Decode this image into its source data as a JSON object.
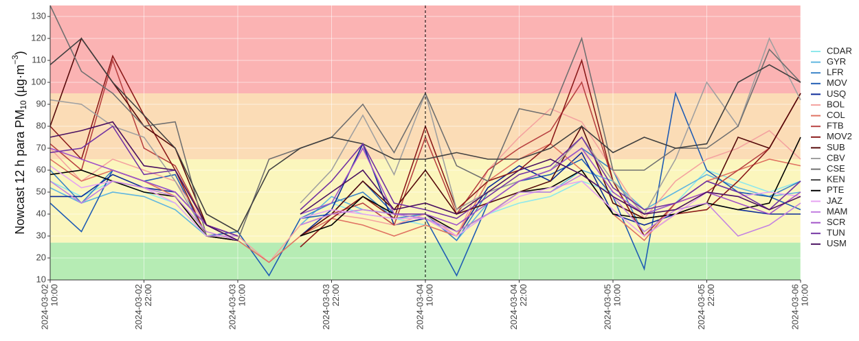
{
  "chart_data": {
    "type": "line",
    "ylabel": {
      "text": "Nowcast 12 h para  PM",
      "sub": "10",
      "unit": " (µg·m",
      "sup": "−3",
      "end": ")"
    },
    "x": [
      "2024-03-02 10:00",
      "2024-03-02 14:00",
      "2024-03-02 18:00",
      "2024-03-02 22:00",
      "2024-03-03 02:00",
      "2024-03-03 06:00",
      "2024-03-03 10:00",
      "2024-03-03 14:00",
      "2024-03-03 18:00",
      "2024-03-03 22:00",
      "2024-03-04 02:00",
      "2024-03-04 06:00",
      "2024-03-04 10:00",
      "2024-03-04 14:00",
      "2024-03-04 18:00",
      "2024-03-04 22:00",
      "2024-03-05 02:00",
      "2024-03-05 06:00",
      "2024-03-05 10:00",
      "2024-03-05 14:00",
      "2024-03-05 18:00",
      "2024-03-05 22:00",
      "2024-03-06 02:00",
      "2024-03-06 06:00",
      "2024-03-06 10:00"
    ],
    "xticks": [
      {
        "value": "2024-03-02 10:00",
        "label": [
          "2024-03-02",
          "10:00"
        ]
      },
      {
        "value": "2024-03-02 22:00",
        "label": [
          "2024-03-02",
          "22:00"
        ]
      },
      {
        "value": "2024-03-03 10:00",
        "label": [
          "2024-03-03",
          "10:00"
        ]
      },
      {
        "value": "2024-03-03 22:00",
        "label": [
          "2024-03-03",
          "22:00"
        ]
      },
      {
        "value": "2024-03-04 10:00",
        "label": [
          "2024-03-04",
          "10:00"
        ]
      },
      {
        "value": "2024-03-04 22:00",
        "label": [
          "2024-03-04",
          "22:00"
        ]
      },
      {
        "value": "2024-03-05 10:00",
        "label": [
          "2024-03-05",
          "10:00"
        ]
      },
      {
        "value": "2024-03-05 22:00",
        "label": [
          "2024-03-05",
          "22:00"
        ]
      },
      {
        "value": "2024-03-06 10:00",
        "label": [
          "2024-03-06",
          "10:00"
        ]
      }
    ],
    "ylim": [
      10,
      135
    ],
    "yticks": [
      10,
      20,
      30,
      40,
      50,
      60,
      70,
      80,
      90,
      100,
      110,
      120,
      130
    ],
    "grid": true,
    "bands": [
      {
        "from": 10,
        "to": 27,
        "color": "#b6ecb4"
      },
      {
        "from": 27,
        "to": 65,
        "color": "#fbf6bd"
      },
      {
        "from": 65,
        "to": 95,
        "color": "#fbdcb6"
      },
      {
        "from": 95,
        "to": 135,
        "color": "#fbb3b3"
      }
    ],
    "vline": "2024-03-04 10:00",
    "legend": "right",
    "series": [
      {
        "name": "CDAR",
        "color": "#8ee8ec",
        "values": [
          55,
          48,
          55,
          50,
          45,
          30,
          28,
          null,
          40,
          45,
          40,
          38,
          35,
          30,
          40,
          45,
          48,
          55,
          50,
          40,
          45,
          60,
          55,
          50,
          55
        ]
      },
      {
        "name": "GYR",
        "color": "#5fb6e0",
        "values": [
          52,
          45,
          50,
          48,
          42,
          30,
          30,
          null,
          35,
          48,
          42,
          40,
          40,
          28,
          45,
          50,
          50,
          60,
          55,
          42,
          50,
          58,
          52,
          48,
          50
        ]
      },
      {
        "name": "LFR",
        "color": "#3a84c8",
        "values": [
          60,
          45,
          60,
          55,
          50,
          35,
          30,
          null,
          38,
          45,
          50,
          38,
          40,
          28,
          50,
          55,
          60,
          70,
          60,
          30,
          45,
          55,
          50,
          48,
          55
        ]
      },
      {
        "name": "MOV",
        "color": "#1f5cb4",
        "values": [
          45,
          32,
          60,
          55,
          58,
          30,
          32,
          12,
          38,
          40,
          55,
          40,
          38,
          12,
          45,
          55,
          58,
          65,
          48,
          15,
          95,
          60,
          50,
          48,
          42
        ]
      },
      {
        "name": "USQ",
        "color": "#0b2a98",
        "values": [
          48,
          48,
          58,
          52,
          50,
          35,
          28,
          null,
          30,
          42,
          72,
          35,
          38,
          30,
          52,
          62,
          55,
          68,
          40,
          35,
          40,
          45,
          42,
          40,
          40
        ]
      },
      {
        "name": "BOL",
        "color": "#f4a3a0",
        "values": [
          70,
          55,
          65,
          60,
          55,
          35,
          30,
          18,
          35,
          40,
          38,
          35,
          40,
          30,
          60,
          75,
          88,
          82,
          60,
          38,
          55,
          65,
          70,
          78,
          65
        ]
      },
      {
        "name": "COL",
        "color": "#e07262",
        "values": [
          65,
          55,
          60,
          55,
          48,
          30,
          28,
          18,
          30,
          38,
          35,
          30,
          35,
          30,
          55,
          65,
          72,
          60,
          40,
          28,
          45,
          55,
          60,
          65,
          62
        ]
      },
      {
        "name": "FTB",
        "color": "#b84242",
        "values": [
          72,
          60,
          110,
          70,
          62,
          35,
          30,
          null,
          30,
          40,
          45,
          35,
          75,
          40,
          60,
          70,
          78,
          100,
          55,
          30,
          45,
          50,
          60,
          70,
          95
        ]
      },
      {
        "name": "MOV2",
        "color": "#8b1a1a",
        "values": [
          80,
          65,
          112,
          85,
          60,
          30,
          28,
          null,
          25,
          38,
          48,
          38,
          80,
          42,
          55,
          60,
          72,
          110,
          55,
          30,
          40,
          42,
          55,
          70,
          95
        ]
      },
      {
        "name": "SUB",
        "color": "#560a0a",
        "values": [
          80,
          120,
          100,
          80,
          70,
          35,
          30,
          null,
          30,
          40,
          55,
          42,
          60,
          40,
          45,
          50,
          55,
          80,
          45,
          38,
          40,
          45,
          75,
          70,
          95
        ]
      },
      {
        "name": "CBV",
        "color": "#a0a0a0",
        "values": [
          92,
          90,
          80,
          75,
          55,
          30,
          30,
          null,
          45,
          60,
          85,
          58,
          95,
          42,
          50,
          55,
          60,
          75,
          55,
          40,
          65,
          100,
          80,
          120,
          92
        ]
      },
      {
        "name": "CSE",
        "color": "#707070",
        "values": [
          135,
          105,
          95,
          80,
          82,
          30,
          28,
          65,
          70,
          75,
          90,
          68,
          95,
          62,
          55,
          88,
          85,
          120,
          60,
          60,
          70,
          70,
          80,
          115,
          100
        ]
      },
      {
        "name": "KEN",
        "color": "#404040",
        "values": [
          108,
          120,
          100,
          85,
          70,
          40,
          32,
          60,
          70,
          75,
          72,
          65,
          65,
          68,
          65,
          65,
          70,
          80,
          68,
          75,
          70,
          72,
          100,
          108,
          100
        ]
      },
      {
        "name": "PTE",
        "color": "#000000",
        "values": [
          58,
          60,
          55,
          50,
          48,
          30,
          28,
          null,
          30,
          35,
          48,
          40,
          40,
          32,
          40,
          50,
          52,
          60,
          40,
          38,
          40,
          45,
          42,
          45,
          75
        ]
      },
      {
        "name": "JAZ",
        "color": "#e6a2f2",
        "values": [
          62,
          52,
          55,
          52,
          45,
          30,
          30,
          null,
          38,
          42,
          40,
          38,
          38,
          30,
          40,
          48,
          52,
          55,
          42,
          30,
          40,
          50,
          48,
          50,
          48
        ]
      },
      {
        "name": "MAM",
        "color": "#c382e2",
        "values": [
          55,
          45,
          55,
          52,
          48,
          32,
          28,
          null,
          35,
          40,
          42,
          40,
          38,
          32,
          40,
          50,
          50,
          58,
          48,
          32,
          42,
          45,
          30,
          35,
          45
        ]
      },
      {
        "name": "SCR",
        "color": "#a152c8",
        "values": [
          70,
          65,
          60,
          55,
          50,
          35,
          30,
          null,
          40,
          45,
          70,
          40,
          40,
          35,
          45,
          55,
          60,
          70,
          50,
          40,
          45,
          50,
          45,
          40,
          50
        ]
      },
      {
        "name": "TUN",
        "color": "#7232a2",
        "values": [
          68,
          70,
          80,
          58,
          60,
          35,
          30,
          null,
          42,
          55,
          72,
          45,
          42,
          38,
          48,
          58,
          62,
          75,
          52,
          42,
          45,
          55,
          50,
          42,
          55
        ]
      },
      {
        "name": "USM",
        "color": "#4a1060",
        "values": [
          75,
          78,
          82,
          62,
          60,
          35,
          28,
          null,
          40,
          50,
          60,
          42,
          45,
          40,
          50,
          60,
          65,
          58,
          48,
          40,
          42,
          50,
          48,
          42,
          48
        ]
      }
    ]
  }
}
